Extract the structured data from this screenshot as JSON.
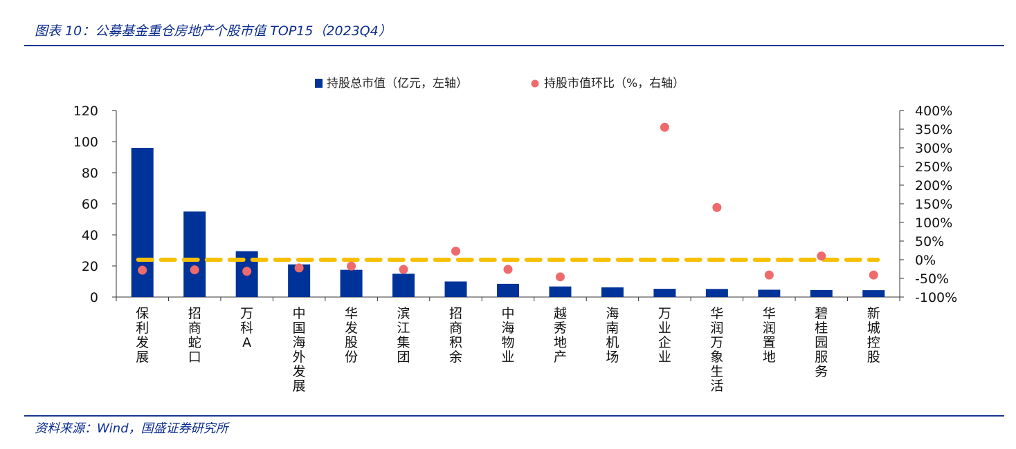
{
  "figure_title": "图表 10：公募基金重仓房地产个股市值 TOP15（2023Q4）",
  "source": "资料来源：Wind，国盛证券研究所",
  "colors": {
    "bar": "#003399",
    "dot": "#ef6b6b",
    "ref_line": "#f5c000",
    "title": "#0b2d8f",
    "rule": "#16358f"
  },
  "chart_data": {
    "type": "bar",
    "categories": [
      "保利发展",
      "招商蛇口",
      "万科A",
      "中国海外发展",
      "华发股份",
      "滨江集团",
      "招商积余",
      "中海物业",
      "越秀地产",
      "海南机场",
      "万业企业",
      "华润万象生活",
      "华润置地",
      "碧桂园服务",
      "新城控股"
    ],
    "series": [
      {
        "name": "持股总市值（亿元，左轴）",
        "type": "bar",
        "axis": "left",
        "values": [
          96,
          55,
          29.5,
          21,
          17.5,
          15,
          10,
          8.5,
          6.8,
          6.2,
          5.3,
          5.2,
          4.7,
          4.5,
          4.4
        ]
      },
      {
        "name": "持股市值环比（%，右轴）",
        "type": "scatter",
        "axis": "right",
        "values": [
          -28,
          -27,
          -31,
          -22,
          -17,
          -26,
          23,
          -26,
          -46,
          null,
          355,
          140,
          -41,
          10,
          -41
        ]
      }
    ],
    "reference_line": {
      "axis": "right",
      "value": 0,
      "style": "dashed"
    },
    "left_axis": {
      "ylim": [
        0,
        120
      ],
      "ticks": [
        "0",
        "20",
        "40",
        "60",
        "80",
        "100",
        "120"
      ]
    },
    "right_axis": {
      "ylim": [
        -100,
        400
      ],
      "ticks": [
        "-100%",
        "-50%",
        "0%",
        "50%",
        "100%",
        "150%",
        "200%",
        "250%",
        "300%",
        "350%",
        "400%"
      ]
    },
    "legend_placement": "top-center",
    "grid": false
  }
}
